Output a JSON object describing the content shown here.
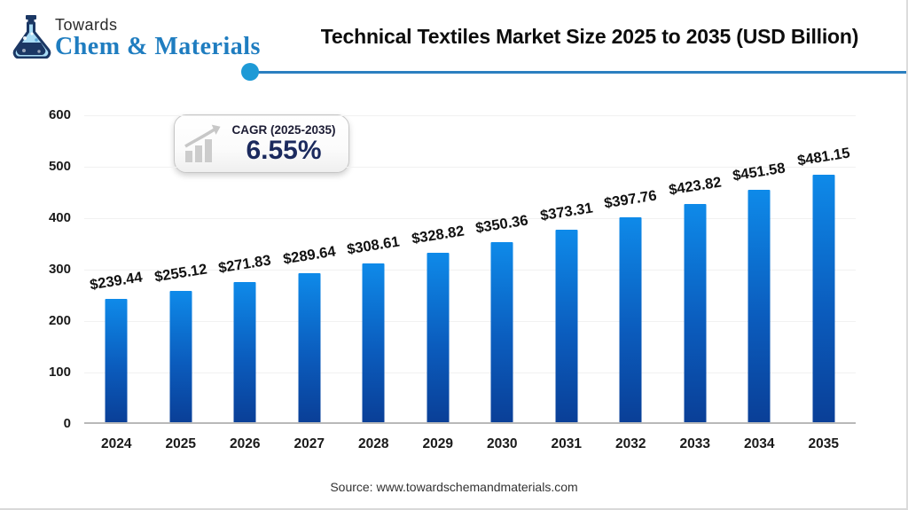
{
  "logo": {
    "top_text": "Towards",
    "name_text": "Chem & Materials"
  },
  "header": {
    "title": "Technical Textiles Market Size 2025 to 2035 (USD Billion)"
  },
  "badge": {
    "label": "CAGR (2025-2035)",
    "value": "6.55%"
  },
  "footer": {
    "source": "Source: www.towardschemandmaterials.com"
  },
  "colors": {
    "bar_gradient_top": "#0e8ae9",
    "bar_gradient_bottom": "#0a3f97",
    "divider_line": "#2b7fc0",
    "divider_dot": "#1e9ad6",
    "logo_blue": "#1f7dc0",
    "badge_navy": "#1b2a5e"
  },
  "chart_data": {
    "type": "bar",
    "title": "Technical Textiles Market Size 2025 to 2035 (USD Billion)",
    "categories": [
      "2024",
      "2025",
      "2026",
      "2027",
      "2028",
      "2029",
      "2030",
      "2031",
      "2032",
      "2033",
      "2034",
      "2035"
    ],
    "values": [
      239.44,
      255.12,
      271.83,
      289.64,
      308.61,
      328.82,
      350.36,
      373.31,
      397.76,
      423.82,
      451.58,
      481.15
    ],
    "data_labels": [
      "$239.44",
      "$255.12",
      "$271.83",
      "$289.64",
      "$308.61",
      "$328.82",
      "$350.36",
      "$373.31",
      "$397.76",
      "$423.82",
      "$451.58",
      "$481.15"
    ],
    "xlabel": "",
    "ylabel": "",
    "ylim": [
      0,
      600
    ],
    "yticks": [
      0,
      100,
      200,
      300,
      400,
      500,
      600
    ],
    "grid": "faint-horizontal",
    "legend": "none",
    "unit": "USD Billion"
  }
}
